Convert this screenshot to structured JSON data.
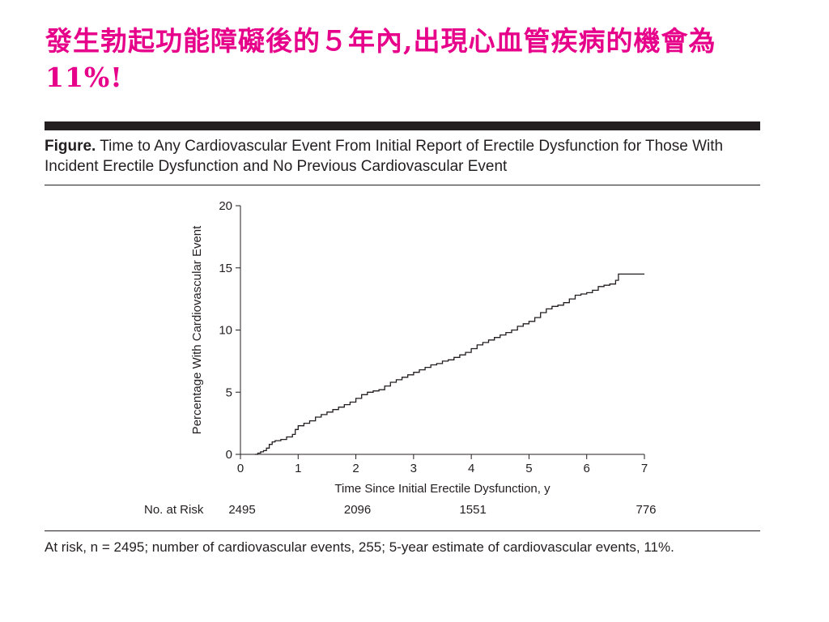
{
  "slide": {
    "title": "發生勃起功能障礙後的５年內,出現心血管疾病的機會為11%!"
  },
  "figure": {
    "caption_lead": "Figure.",
    "caption_text": " Time to Any Cardiovascular Event From Initial Report of Erectile Dysfunction for Those With Incident Erectile Dysfunction and No Previous Cardiovascular Event",
    "footnote": "At risk, n = 2495; number of cardiovascular events, 255; 5-year estimate of cardiovascular events, 11%."
  },
  "colors": {
    "title": "#e6008a",
    "rules": "#231f20",
    "line": "#231f20"
  },
  "chart_data": {
    "type": "line",
    "title": "",
    "xlabel": "Time Since Initial Erectile Dysfunction, y",
    "ylabel": "Percentage With Cardiovascular Event",
    "xlim": [
      0,
      7
    ],
    "ylim": [
      0,
      20
    ],
    "x_ticks": [
      0,
      1,
      2,
      3,
      4,
      5,
      6,
      7
    ],
    "y_ticks": [
      0,
      5,
      10,
      15,
      20
    ],
    "grid": false,
    "step": true,
    "series": [
      {
        "name": "",
        "x": [
          0.25,
          0.3,
          0.35,
          0.4,
          0.45,
          0.5,
          0.55,
          0.6,
          0.7,
          0.8,
          0.9,
          0.95,
          1.0,
          1.1,
          1.2,
          1.3,
          1.4,
          1.5,
          1.6,
          1.7,
          1.8,
          1.9,
          2.0,
          2.1,
          2.2,
          2.3,
          2.4,
          2.5,
          2.6,
          2.7,
          2.8,
          2.9,
          3.0,
          3.1,
          3.2,
          3.3,
          3.4,
          3.5,
          3.6,
          3.7,
          3.8,
          3.9,
          4.0,
          4.1,
          4.2,
          4.3,
          4.4,
          4.5,
          4.6,
          4.7,
          4.8,
          4.9,
          5.0,
          5.1,
          5.2,
          5.3,
          5.4,
          5.5,
          5.6,
          5.7,
          5.8,
          5.9,
          6.0,
          6.1,
          6.2,
          6.3,
          6.4,
          6.5,
          6.55,
          7.0
        ],
        "values": [
          0.0,
          0.1,
          0.2,
          0.3,
          0.5,
          0.8,
          1.0,
          1.1,
          1.2,
          1.4,
          1.6,
          2.0,
          2.3,
          2.5,
          2.7,
          3.0,
          3.2,
          3.4,
          3.6,
          3.8,
          4.0,
          4.2,
          4.5,
          4.8,
          5.0,
          5.1,
          5.2,
          5.5,
          5.8,
          6.0,
          6.2,
          6.4,
          6.6,
          6.8,
          7.0,
          7.2,
          7.3,
          7.5,
          7.6,
          7.8,
          8.0,
          8.2,
          8.5,
          8.8,
          9.0,
          9.2,
          9.4,
          9.6,
          9.8,
          10.0,
          10.3,
          10.5,
          10.7,
          11.0,
          11.4,
          11.7,
          11.9,
          12.0,
          12.2,
          12.5,
          12.8,
          12.9,
          13.0,
          13.2,
          13.5,
          13.6,
          13.7,
          14.0,
          14.5,
          14.5
        ]
      }
    ],
    "risk_table": {
      "label": "No. at Risk",
      "entries": [
        {
          "x": 0,
          "value": "2495"
        },
        {
          "x": 2,
          "value": "2096"
        },
        {
          "x": 4,
          "value": "1551"
        },
        {
          "x": 7,
          "value": "776"
        }
      ]
    }
  }
}
